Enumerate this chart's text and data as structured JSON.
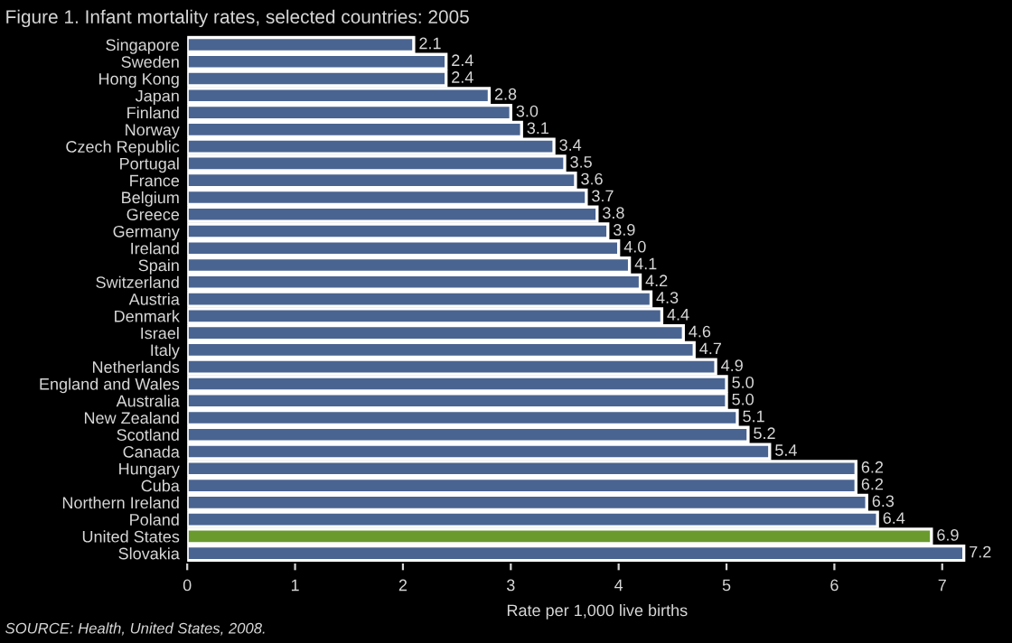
{
  "chart_data": {
    "type": "bar",
    "orientation": "horizontal",
    "title": "Figure 1. Infant mortality rates, selected countries: 2005",
    "xlabel": "Rate per 1,000 live births",
    "categories": [
      "Singapore",
      "Sweden",
      "Hong Kong",
      "Japan",
      "Finland",
      "Norway",
      "Czech Republic",
      "Portugal",
      "France",
      "Belgium",
      "Greece",
      "Germany",
      "Ireland",
      "Spain",
      "Switzerland",
      "Austria",
      "Denmark",
      "Israel",
      "Italy",
      "Netherlands",
      "England and Wales",
      "Australia",
      "New Zealand",
      "Scotland",
      "Canada",
      "Hungary",
      "Cuba",
      "Northern Ireland",
      "Poland",
      "United States",
      "Slovakia"
    ],
    "values": [
      2.1,
      2.4,
      2.4,
      2.8,
      3.0,
      3.1,
      3.4,
      3.5,
      3.6,
      3.7,
      3.8,
      3.9,
      4.0,
      4.1,
      4.2,
      4.3,
      4.4,
      4.6,
      4.7,
      4.9,
      5.0,
      5.0,
      5.1,
      5.2,
      5.4,
      6.2,
      6.2,
      6.3,
      6.4,
      6.9,
      7.2
    ],
    "colors": [
      "#4a6491",
      "#4a6491",
      "#4a6491",
      "#4a6491",
      "#4a6491",
      "#4a6491",
      "#4a6491",
      "#4a6491",
      "#4a6491",
      "#4a6491",
      "#4a6491",
      "#4a6491",
      "#4a6491",
      "#4a6491",
      "#4a6491",
      "#4a6491",
      "#4a6491",
      "#4a6491",
      "#4a6491",
      "#4a6491",
      "#4a6491",
      "#4a6491",
      "#4a6491",
      "#4a6491",
      "#4a6491",
      "#4a6491",
      "#4a6491",
      "#4a6491",
      "#4a6491",
      "#6a9a2e",
      "#4a6491"
    ],
    "value_labels": [
      "2.1",
      "2.4",
      "2.4",
      "2.8",
      "3.0",
      "3.1",
      "3.4",
      "3.5",
      "3.6",
      "3.7",
      "3.8",
      "3.9",
      "4.0",
      "4.1",
      "4.2",
      "4.3",
      "4.4",
      "4.6",
      "4.7",
      "4.9",
      "5.0",
      "5.0",
      "5.1",
      "5.2",
      "5.4",
      "6.2",
      "6.2",
      "6.3",
      "6.4",
      "6.9",
      "7.2"
    ],
    "xlim": [
      0,
      7.6
    ],
    "xticks": [
      0,
      1,
      2,
      3,
      4,
      5,
      6,
      7
    ],
    "grid": false,
    "legend": false,
    "annotations": [
      "SOURCE: Health, United States, 2008."
    ]
  }
}
